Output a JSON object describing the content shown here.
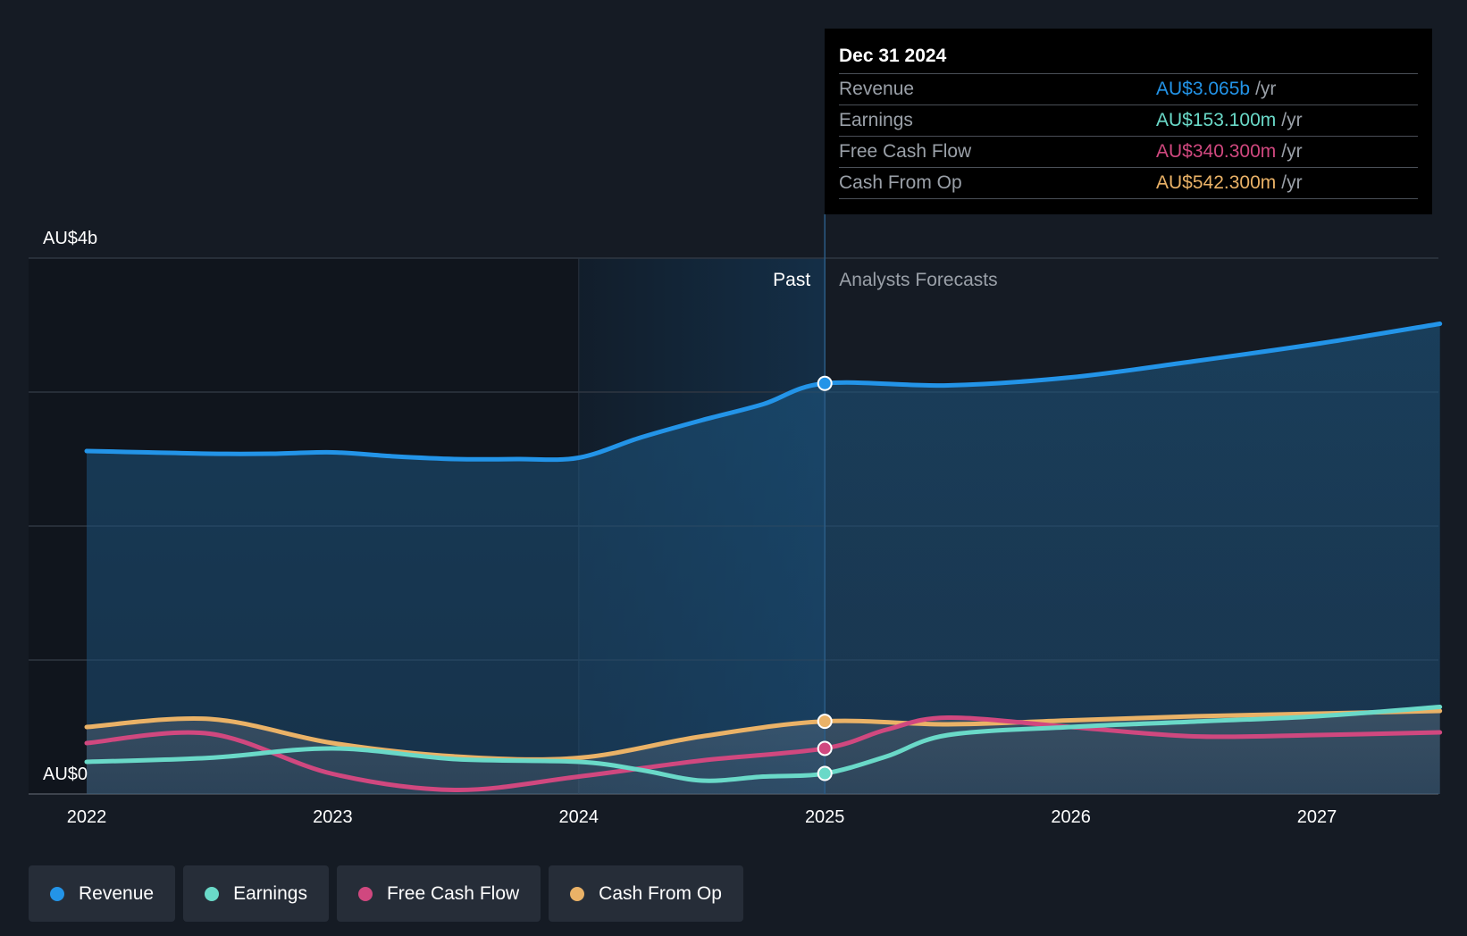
{
  "chart_data": {
    "type": "line",
    "title": "",
    "y_axis": {
      "top_label": "AU$4b",
      "bottom_label": "AU$0",
      "ylim": [
        0,
        4
      ],
      "unit": "AU$ billions"
    },
    "x_axis": {
      "ticks": [
        "2022",
        "2023",
        "2024",
        "2025",
        "2026",
        "2027"
      ],
      "range": [
        2021.77,
        2027.5
      ]
    },
    "zones": {
      "past_label": "Past",
      "forecast_label": "Analysts Forecasts",
      "divider_x": 2025.0,
      "highlight_start_x": 2024.0
    },
    "series": [
      {
        "name": "Revenue",
        "color": "#2394e8",
        "area": true,
        "points": [
          [
            2022.0,
            2.56
          ],
          [
            2022.25,
            2.55
          ],
          [
            2022.5,
            2.54
          ],
          [
            2022.75,
            2.54
          ],
          [
            2023.0,
            2.55
          ],
          [
            2023.25,
            2.52
          ],
          [
            2023.5,
            2.5
          ],
          [
            2023.75,
            2.5
          ],
          [
            2024.0,
            2.51
          ],
          [
            2024.25,
            2.66
          ],
          [
            2024.5,
            2.79
          ],
          [
            2024.75,
            2.91
          ],
          [
            2025.0,
            3.065
          ],
          [
            2025.5,
            3.05
          ],
          [
            2026.0,
            3.11
          ],
          [
            2026.5,
            3.23
          ],
          [
            2027.0,
            3.36
          ],
          [
            2027.5,
            3.51
          ]
        ]
      },
      {
        "name": "Earnings",
        "color": "#6ad9c8",
        "area": false,
        "points": [
          [
            2022.0,
            0.24
          ],
          [
            2022.5,
            0.27
          ],
          [
            2023.0,
            0.34
          ],
          [
            2023.5,
            0.26
          ],
          [
            2024.0,
            0.24
          ],
          [
            2024.25,
            0.18
          ],
          [
            2024.5,
            0.1
          ],
          [
            2024.75,
            0.13
          ],
          [
            2025.0,
            0.1531
          ],
          [
            2025.25,
            0.28
          ],
          [
            2025.5,
            0.44
          ],
          [
            2026.0,
            0.5
          ],
          [
            2026.5,
            0.54
          ],
          [
            2027.0,
            0.58
          ],
          [
            2027.5,
            0.65
          ]
        ]
      },
      {
        "name": "Free Cash Flow",
        "color": "#d0487f",
        "area": false,
        "points": [
          [
            2022.0,
            0.38
          ],
          [
            2022.5,
            0.45
          ],
          [
            2023.0,
            0.15
          ],
          [
            2023.5,
            0.03
          ],
          [
            2024.0,
            0.13
          ],
          [
            2024.5,
            0.25
          ],
          [
            2025.0,
            0.3403
          ],
          [
            2025.25,
            0.48
          ],
          [
            2025.5,
            0.57
          ],
          [
            2026.0,
            0.5
          ],
          [
            2026.5,
            0.43
          ],
          [
            2027.0,
            0.44
          ],
          [
            2027.5,
            0.46
          ]
        ]
      },
      {
        "name": "Cash From Op",
        "color": "#eab267",
        "area": false,
        "points": [
          [
            2022.0,
            0.5
          ],
          [
            2022.5,
            0.56
          ],
          [
            2023.0,
            0.38
          ],
          [
            2023.5,
            0.28
          ],
          [
            2024.0,
            0.27
          ],
          [
            2024.5,
            0.43
          ],
          [
            2025.0,
            0.5423
          ],
          [
            2025.5,
            0.52
          ],
          [
            2026.0,
            0.55
          ],
          [
            2026.5,
            0.58
          ],
          [
            2027.0,
            0.6
          ],
          [
            2027.5,
            0.62
          ]
        ]
      }
    ]
  },
  "tooltip": {
    "date": "Dec 31 2024",
    "rows": [
      {
        "label": "Revenue",
        "value": "AU$3.065b",
        "unit": "/yr",
        "color": "#2394e8"
      },
      {
        "label": "Earnings",
        "value": "AU$153.100m",
        "unit": "/yr",
        "color": "#6ad9c8"
      },
      {
        "label": "Free Cash Flow",
        "value": "AU$340.300m",
        "unit": "/yr",
        "color": "#d0487f"
      },
      {
        "label": "Cash From Op",
        "value": "AU$542.300m",
        "unit": "/yr",
        "color": "#eab267"
      }
    ]
  },
  "legend": [
    {
      "label": "Revenue",
      "color": "#2394e8"
    },
    {
      "label": "Earnings",
      "color": "#6ad9c8"
    },
    {
      "label": "Free Cash Flow",
      "color": "#d0487f"
    },
    {
      "label": "Cash From Op",
      "color": "#eab267"
    }
  ]
}
